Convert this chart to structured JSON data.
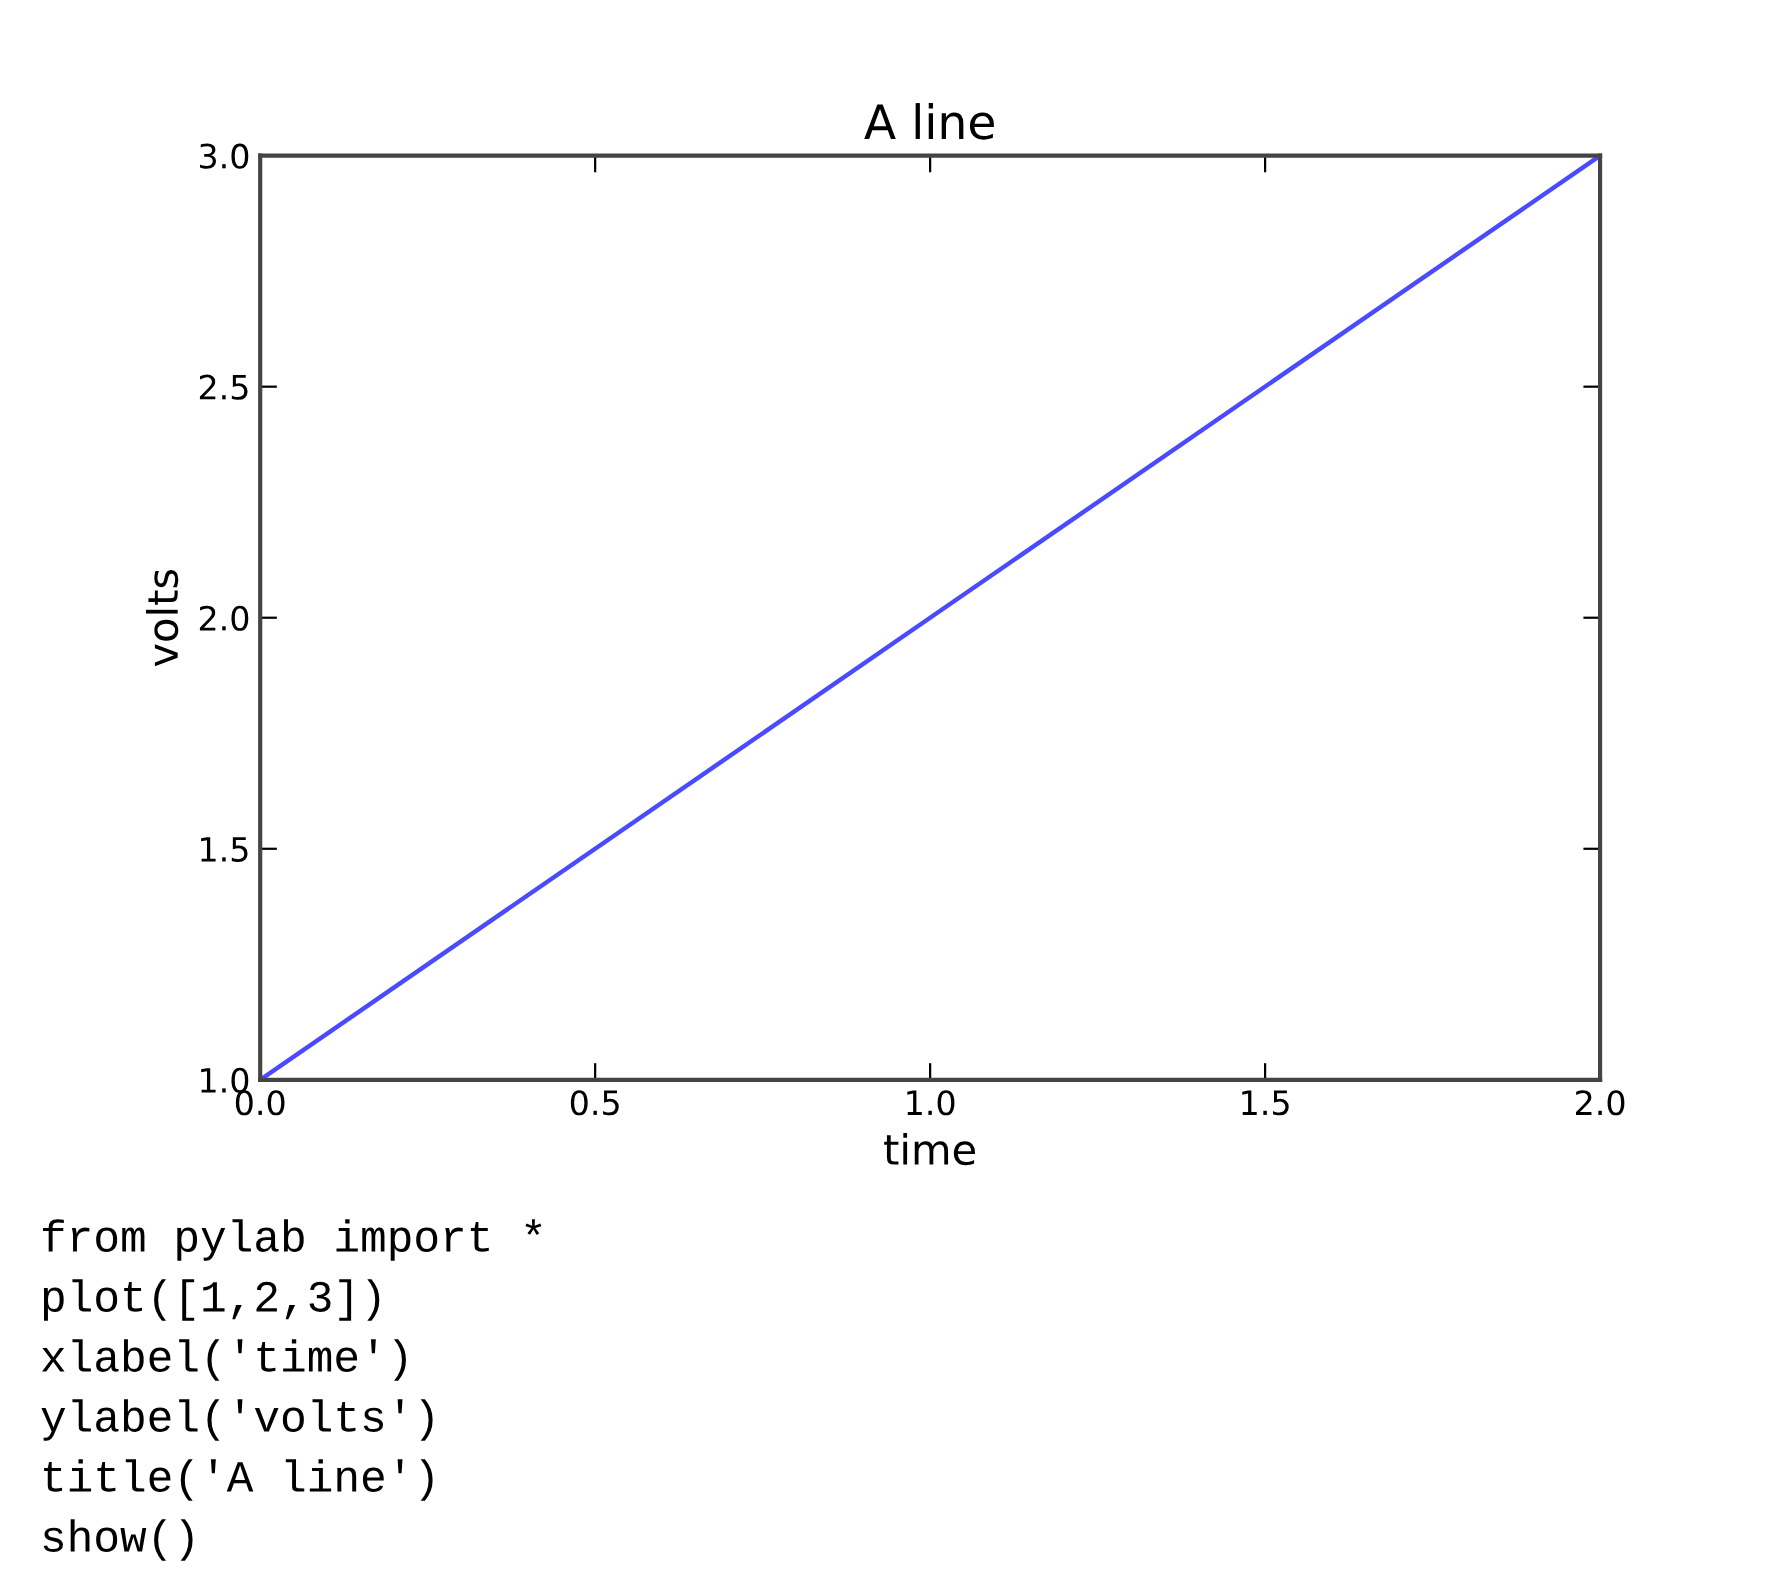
{
  "chart_data": {
    "type": "line",
    "title": "A line",
    "xlabel": "time",
    "ylabel": "volts",
    "x": [
      0,
      1,
      2
    ],
    "series": [
      {
        "color": "#4a4aff",
        "values": [
          1,
          2,
          3
        ]
      }
    ],
    "xlim": [
      0,
      2
    ],
    "ylim": [
      1,
      3
    ],
    "xticks": [
      {
        "value": 0,
        "label": "0.0"
      },
      {
        "value": 0.5,
        "label": "0.5"
      },
      {
        "value": 1,
        "label": "1.0"
      },
      {
        "value": 1.5,
        "label": "1.5"
      },
      {
        "value": 2,
        "label": "2.0"
      }
    ],
    "yticks": [
      {
        "value": 1,
        "label": "1.0"
      },
      {
        "value": 1.5,
        "label": "1.5"
      },
      {
        "value": 2,
        "label": "2.0"
      },
      {
        "value": 2.5,
        "label": "2.5"
      },
      {
        "value": 3,
        "label": "3.0"
      }
    ],
    "grid": false,
    "marker": "none",
    "line_style": "solid",
    "annotations": [
      "from pylab import *",
      "plot([1,2,3])",
      "xlabel('time')",
      "ylabel('volts')",
      "title('A line')",
      "show()"
    ]
  }
}
